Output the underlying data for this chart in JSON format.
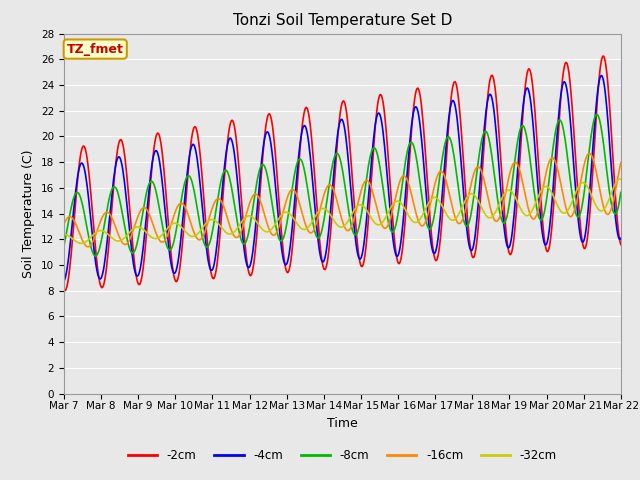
{
  "title": "Tonzi Soil Temperature Set D",
  "xlabel": "Time",
  "ylabel": "Soil Temperature (C)",
  "annotation": "TZ_fmet",
  "annotation_color": "#cc0000",
  "annotation_bg": "#ffffcc",
  "annotation_border": "#cc9900",
  "ylim": [
    0,
    28
  ],
  "yticks": [
    0,
    2,
    4,
    6,
    8,
    10,
    12,
    14,
    16,
    18,
    20,
    22,
    24,
    26,
    28
  ],
  "series": {
    "-2cm": {
      "color": "#ff0000",
      "lw": 1.2
    },
    "-4cm": {
      "color": "#0000ff",
      "lw": 1.2
    },
    "-8cm": {
      "color": "#00bb00",
      "lw": 1.2
    },
    "-16cm": {
      "color": "#ff8800",
      "lw": 1.2
    },
    "-32cm": {
      "color": "#cccc00",
      "lw": 1.2
    }
  },
  "bg_color": "#e8e8e8",
  "plot_bg": "#e8e8e8",
  "grid_color": "#ffffff",
  "title_fontsize": 11,
  "label_fontsize": 9,
  "tick_fontsize": 7.5
}
